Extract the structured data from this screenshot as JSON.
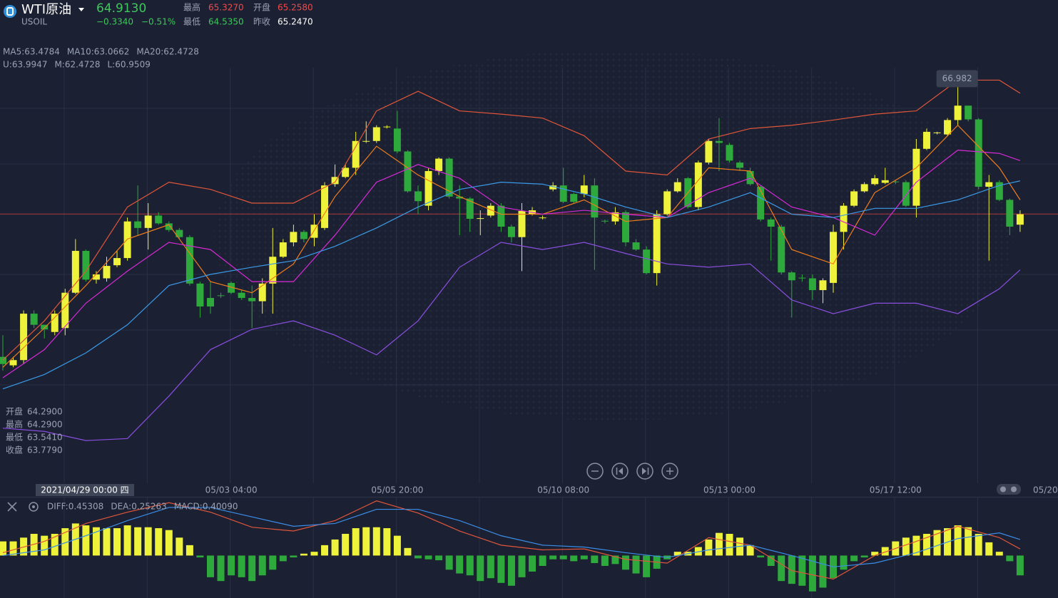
{
  "header": {
    "name": "WTI原油",
    "symbol": "USOIL",
    "last_price": {
      "value": 64.913,
      "label": "64.9130"
    },
    "change": "−0.3340",
    "change_pct": "−0.51%",
    "high_label": "最高",
    "high": "65.3270",
    "open_label": "开盘",
    "open": "65.2580",
    "low_label": "最低",
    "low": "64.5350",
    "prev_close_label": "昨收",
    "prev_close": "65.2470"
  },
  "hover": [
    {
      "label": "开盘",
      "value": "64.2900"
    },
    {
      "label": "最高",
      "value": "64.2900"
    },
    {
      "label": "最低",
      "value": "63.5410"
    },
    {
      "label": "收盘",
      "value": "63.7790"
    }
  ],
  "chart_data": [
    {
      "type": "candlestick",
      "up_color": "#eef23a",
      "down_color": "#2eaa3c",
      "ylim": [
        60.83,
        67.15
      ],
      "categories": [
        null,
        null,
        null,
        null,
        null,
        null,
        null,
        null,
        null,
        null,
        null,
        null,
        null,
        null,
        null,
        null,
        null,
        null,
        null,
        null,
        null,
        null,
        "05/03 04:00",
        null,
        null,
        null,
        null,
        null,
        null,
        null,
        null,
        null,
        null,
        null,
        null,
        null,
        null,
        null,
        "05/05 20:00",
        null,
        null,
        null,
        null,
        null,
        null,
        null,
        null,
        null,
        null,
        null,
        null,
        null,
        null,
        null,
        "05/10 08:00",
        null,
        null,
        null,
        null,
        null,
        null,
        null,
        null,
        null,
        null,
        null,
        null,
        null,
        null,
        null,
        "05/13 00:00",
        null,
        null,
        null,
        null,
        null,
        null,
        null,
        null,
        null,
        null,
        null,
        null,
        null,
        null,
        null,
        "05/17 12:00",
        null,
        null,
        null,
        null,
        null,
        null,
        null,
        null,
        null,
        null,
        null,
        null
      ],
      "crosshair_label": "2021/04/29 00:00 四",
      "x_edge_label": "05/20",
      "open": [
        62.73,
        62.6,
        62.68,
        63.39,
        63.22,
        63.11,
        63.17,
        63.71,
        64.35,
        63.91,
        63.93,
        64.13,
        64.24,
        64.8,
        64.7,
        64.89,
        64.77,
        64.67,
        64.56,
        63.85,
        63.63,
        63.67,
        63.86,
        63.71,
        63.63,
        63.58,
        63.85,
        64.26,
        64.48,
        64.64,
        64.55,
        64.7,
        65.37,
        65.48,
        65.62,
        66.02,
        66.03,
        66.24,
        66.22,
        65.87,
        65.26,
        65.04,
        65.57,
        65.76,
        65.18,
        65.15,
        64.84,
        64.89,
        65.04,
        64.72,
        64.56,
        64.91,
        64.85,
        65.29,
        65.35,
        65.22,
        65.22,
        65.35,
        64.81,
        64.8,
        64.94,
        64.48,
        64.37,
        64.01,
        64.91,
        65.26,
        65.46,
        65.02,
        65.7,
        66.03,
        65.97,
        65.7,
        65.57,
        65.33,
        64.83,
        64.72,
        64.02,
        63.94,
        63.93,
        63.75,
        63.86,
        64.64,
        65.04,
        65.26,
        65.37,
        65.39,
        65.41,
        65.4,
        65.04,
        65.91,
        66.15,
        66.13,
        66.35,
        66.57,
        66.36,
        65.33,
        65.4,
        65.13,
        64.75
      ],
      "high": [
        63.06,
        62.73,
        63.44,
        63.44,
        63.22,
        63.44,
        63.77,
        64.53,
        64.37,
        64.04,
        64.26,
        64.35,
        64.86,
        65.35,
        65.08,
        64.94,
        64.8,
        64.7,
        64.59,
        63.88,
        63.88,
        63.71,
        63.88,
        63.75,
        63.82,
        63.93,
        64.7,
        64.53,
        64.75,
        64.67,
        64.91,
        65.4,
        65.67,
        65.67,
        66.17,
        66.33,
        66.27,
        66.27,
        66.49,
        65.89,
        65.35,
        65.62,
        65.78,
        65.78,
        65.35,
        65.17,
        64.97,
        65.08,
        65.08,
        64.75,
        65.08,
        65.02,
        64.89,
        65.4,
        65.62,
        65.24,
        65.51,
        65.46,
        64.83,
        65.02,
        64.97,
        64.53,
        64.42,
        64.97,
        65.29,
        65.46,
        65.48,
        65.73,
        66.06,
        66.38,
        66.0,
        65.73,
        65.62,
        65.35,
        64.86,
        64.75,
        64.04,
        63.99,
        63.99,
        63.93,
        64.75,
        65.08,
        65.29,
        65.4,
        65.51,
        65.62,
        65.43,
        65.43,
        66.06,
        66.22,
        66.17,
        66.38,
        66.982,
        66.57,
        66.38,
        65.51,
        65.43,
        65.15,
        64.97
      ],
      "low": [
        62.52,
        62.57,
        62.62,
        63.17,
        63.01,
        63.06,
        63.06,
        63.69,
        63.88,
        63.85,
        63.88,
        64.1,
        64.2,
        64.59,
        64.37,
        64.75,
        64.64,
        64.53,
        63.82,
        63.33,
        63.39,
        63.63,
        63.69,
        63.6,
        63.17,
        63.39,
        63.39,
        64.24,
        64.42,
        64.48,
        64.42,
        64.67,
        65.33,
        65.46,
        65.51,
        66.0,
        66.0,
        66.22,
        65.84,
        65.24,
        64.91,
        64.97,
        65.51,
        65.15,
        64.59,
        64.64,
        64.59,
        64.86,
        64.64,
        64.48,
        64.04,
        64.89,
        64.83,
        65.26,
        65.08,
        65.08,
        65.17,
        64.06,
        64.77,
        64.75,
        64.42,
        64.35,
        63.99,
        63.82,
        64.89,
        65.24,
        65.0,
        64.97,
        65.67,
        65.57,
        65.7,
        65.57,
        65.35,
        64.8,
        64.2,
        63.99,
        63.33,
        63.88,
        63.6,
        63.55,
        63.71,
        64.37,
        65.02,
        65.24,
        65.35,
        65.37,
        65.37,
        65.02,
        64.86,
        65.89,
        66.13,
        66.11,
        66.27,
        66.33,
        65.29,
        64.2,
        65.11,
        64.59,
        64.64
      ],
      "close": [
        62.62,
        62.68,
        63.39,
        63.22,
        63.15,
        63.39,
        63.71,
        64.35,
        63.91,
        63.99,
        64.12,
        64.24,
        64.8,
        64.7,
        64.89,
        64.77,
        64.67,
        64.56,
        63.85,
        63.5,
        63.5,
        63.66,
        63.71,
        63.63,
        63.58,
        63.85,
        64.26,
        64.48,
        64.64,
        64.53,
        64.75,
        65.35,
        65.48,
        65.62,
        66.03,
        66.03,
        66.24,
        66.25,
        65.87,
        65.26,
        65.11,
        65.57,
        65.76,
        65.18,
        65.15,
        64.84,
        64.85,
        65.04,
        64.72,
        64.56,
        64.96,
        64.97,
        64.86,
        65.35,
        65.1,
        65.1,
        65.35,
        64.86,
        64.8,
        64.94,
        64.48,
        64.37,
        64.01,
        64.91,
        65.26,
        65.4,
        65.02,
        65.7,
        66.03,
        66.0,
        65.73,
        65.62,
        65.37,
        64.83,
        64.72,
        64.02,
        63.9,
        63.93,
        63.75,
        63.9,
        64.64,
        65.04,
        65.26,
        65.37,
        65.46,
        65.43,
        65.4,
        65.04,
        65.91,
        66.17,
        66.16,
        66.35,
        66.57,
        66.36,
        65.33,
        65.4,
        65.13,
        64.72,
        64.91
      ],
      "max_marker": 66.982,
      "legend_extra": {
        "name": "MA20:62.4728",
        "color": "#2bc6d8"
      },
      "overlays": {
        "x": [
          0,
          4,
          8,
          12,
          16,
          20,
          24,
          28,
          32,
          36,
          40,
          44,
          48,
          52,
          56,
          60,
          64,
          68,
          72,
          76,
          80,
          84,
          88,
          92,
          96,
          98
        ],
        "series": [
          {
            "name": "MA5:63.4784",
            "color": "#f07d1a",
            "values": [
              62.57,
              63.17,
              63.82,
              64.53,
              64.75,
              63.88,
              63.71,
              64.15,
              65.18,
              65.95,
              65.51,
              65.18,
              64.91,
              64.91,
              65.13,
              64.8,
              64.86,
              65.62,
              65.57,
              64.37,
              64.15,
              65.24,
              65.62,
              66.27,
              65.62,
              65.13
            ]
          },
          {
            "name": "MA10:63.0662",
            "color": "#d62ad6",
            "values": [
              62.41,
              62.84,
              63.55,
              64.04,
              64.48,
              64.37,
              63.88,
              63.88,
              64.59,
              65.4,
              65.67,
              65.46,
              65.02,
              64.91,
              64.97,
              64.91,
              64.86,
              65.24,
              65.46,
              65.02,
              64.86,
              64.59,
              65.4,
              65.89,
              65.84,
              65.73
            ]
          },
          {
            "name": "U:63.9947",
            "color": "#e0563a",
            "values": [
              62.68,
              63.28,
              64.04,
              65.02,
              65.4,
              65.29,
              65.08,
              65.08,
              65.4,
              66.49,
              66.79,
              66.49,
              66.44,
              66.38,
              66.11,
              65.57,
              65.51,
              66.06,
              66.22,
              66.27,
              66.35,
              66.44,
              66.49,
              66.96,
              66.96,
              66.76
            ]
          },
          {
            "name": "M:62.4728",
            "color": "#3b9ae8",
            "values": [
              62.24,
              62.46,
              62.79,
              63.22,
              63.82,
              63.99,
              64.1,
              64.2,
              64.42,
              64.7,
              65.02,
              65.29,
              65.4,
              65.37,
              65.22,
              65.02,
              64.86,
              65.02,
              65.24,
              64.91,
              64.86,
              65.0,
              65.0,
              65.13,
              65.35,
              65.42
            ]
          },
          {
            "name": "L:60.9509",
            "color": "#8a4ee0",
            "values": [
              61.64,
              61.59,
              61.45,
              61.48,
              62.13,
              62.84,
              63.15,
              63.28,
              63.06,
              62.76,
              63.28,
              64.1,
              64.48,
              64.37,
              64.48,
              64.31,
              64.15,
              64.1,
              64.15,
              63.6,
              63.39,
              63.55,
              63.55,
              63.39,
              63.77,
              64.06
            ]
          }
        ]
      }
    },
    {
      "type": "macd",
      "name": "MACD:0.40090",
      "name_color": "#5a6ee8",
      "pos_color": "#eef23a",
      "neg_color": "#2eaa3c",
      "ylim": [
        -0.45,
        0.6
      ],
      "values": [
        0.15,
        0.15,
        0.19,
        0.23,
        0.21,
        0.23,
        0.29,
        0.34,
        0.32,
        0.3,
        0.29,
        0.29,
        0.32,
        0.3,
        0.3,
        0.29,
        0.27,
        0.19,
        0.11,
        -0.02,
        -0.23,
        -0.27,
        -0.21,
        -0.23,
        -0.27,
        -0.21,
        -0.15,
        -0.06,
        -0.02,
        0.02,
        0.04,
        0.11,
        0.17,
        0.23,
        0.29,
        0.3,
        0.3,
        0.29,
        0.21,
        0.08,
        -0.03,
        -0.04,
        -0.05,
        -0.15,
        -0.19,
        -0.21,
        -0.27,
        -0.24,
        -0.29,
        -0.32,
        -0.23,
        -0.17,
        -0.11,
        -0.04,
        -0.04,
        -0.06,
        -0.04,
        -0.08,
        -0.11,
        -0.09,
        -0.15,
        -0.19,
        -0.23,
        -0.14,
        -0.04,
        0.04,
        0.04,
        0.09,
        0.17,
        0.24,
        0.23,
        0.19,
        0.11,
        -0.02,
        -0.11,
        -0.27,
        -0.3,
        -0.32,
        -0.38,
        -0.34,
        -0.24,
        -0.15,
        -0.06,
        -0.02,
        0.04,
        0.09,
        0.15,
        0.19,
        0.21,
        0.23,
        0.27,
        0.29,
        0.32,
        0.3,
        0.23,
        0.14,
        0.04,
        -0.06,
        -0.21
      ],
      "lines": {
        "x": [
          0,
          4,
          8,
          12,
          16,
          20,
          24,
          28,
          32,
          36,
          40,
          44,
          48,
          52,
          56,
          60,
          64,
          68,
          72,
          76,
          80,
          84,
          88,
          92,
          96,
          98
        ],
        "series": [
          {
            "name": "DIFF:0.45308",
            "color": "#e0563a",
            "values": [
              0.03,
              0.15,
              0.34,
              0.46,
              0.56,
              0.46,
              0.3,
              0.26,
              0.37,
              0.58,
              0.45,
              0.26,
              0.11,
              0.06,
              0.07,
              -0.04,
              -0.08,
              0.19,
              0.11,
              -0.16,
              -0.25,
              0.0,
              0.15,
              0.31,
              0.19,
              0.07
            ]
          },
          {
            "name": "DEA:0.25263",
            "color": "#3b8ee8",
            "values": [
              0.0,
              0.06,
              0.21,
              0.37,
              0.51,
              0.51,
              0.41,
              0.31,
              0.34,
              0.49,
              0.49,
              0.37,
              0.21,
              0.11,
              0.09,
              0.03,
              -0.02,
              0.06,
              0.11,
              0.0,
              -0.12,
              -0.08,
              0.03,
              0.18,
              0.24,
              0.17
            ]
          }
        ]
      }
    }
  ]
}
